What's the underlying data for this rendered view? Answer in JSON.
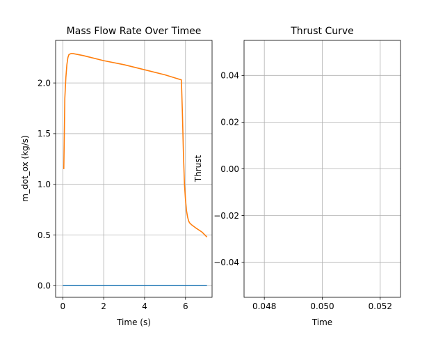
{
  "chart_data": [
    {
      "type": "line",
      "title": "Mass Flow Rate Over Timee",
      "xlabel": "Time (s)",
      "ylabel": "m_dot_ox (kg/s)",
      "xlim": [
        -0.35,
        7.3
      ],
      "ylim": [
        -0.115,
        2.42
      ],
      "xticks": [
        0,
        2,
        4,
        6
      ],
      "xtick_labels": [
        "0",
        "2",
        "4",
        "6"
      ],
      "yticks": [
        0.0,
        0.5,
        1.0,
        1.5,
        2.0
      ],
      "ytick_labels": [
        "0.0",
        "0.5",
        "1.0",
        "1.5",
        "2.0"
      ],
      "grid": true,
      "series": [
        {
          "color": "#1f77b4",
          "x": [
            0.0,
            7.05
          ],
          "y": [
            0.0,
            0.0
          ]
        },
        {
          "color": "#ff7f0e",
          "x": [
            0.05,
            0.1,
            0.15,
            0.2,
            0.25,
            0.3,
            0.4,
            0.5,
            1.0,
            2.0,
            3.0,
            4.0,
            5.0,
            5.8,
            5.85,
            5.9,
            5.95,
            6.0,
            6.05,
            6.1,
            6.15,
            6.2,
            6.3,
            6.5,
            6.8,
            7.05
          ],
          "y": [
            1.15,
            1.85,
            2.05,
            2.18,
            2.25,
            2.28,
            2.29,
            2.29,
            2.27,
            2.22,
            2.18,
            2.13,
            2.08,
            2.03,
            1.7,
            1.3,
            1.0,
            0.85,
            0.74,
            0.68,
            0.64,
            0.62,
            0.6,
            0.57,
            0.53,
            0.48
          ]
        }
      ]
    },
    {
      "type": "line",
      "title": "Thrust Curve",
      "xlabel": "Time",
      "ylabel": "Thrust",
      "xlim": [
        0.0473,
        0.0527
      ],
      "ylim": [
        -0.055,
        0.055
      ],
      "xticks": [
        0.048,
        0.05,
        0.052
      ],
      "xtick_labels": [
        "0.048",
        "0.050",
        "0.052"
      ],
      "yticks": [
        -0.04,
        -0.02,
        0.0,
        0.02,
        0.04
      ],
      "ytick_labels": [
        "−0.04",
        "−0.02",
        "0.00",
        "0.02",
        "0.04"
      ],
      "grid": true,
      "series": []
    }
  ]
}
